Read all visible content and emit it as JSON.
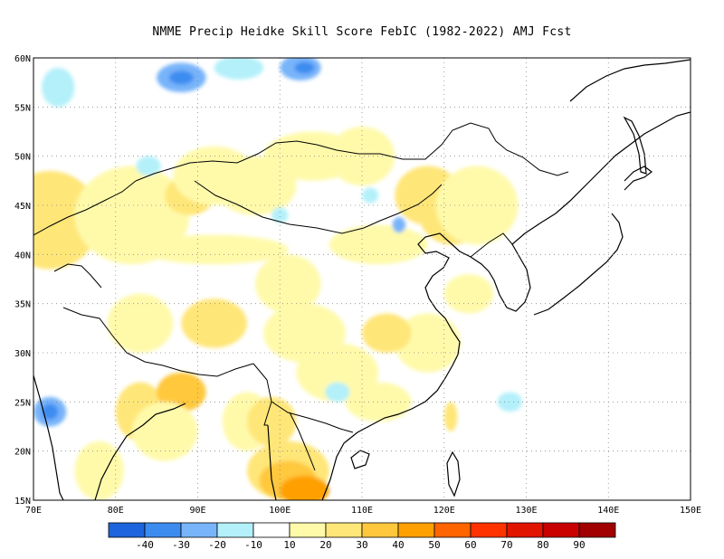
{
  "title": "NMME Precip Heidke Skill Score FebIC (1982-2022) AMJ Fcst",
  "map": {
    "lon_range": [
      70,
      150
    ],
    "lat_range": [
      15,
      60
    ],
    "lon_ticks": [
      "70E",
      "80E",
      "90E",
      "100E",
      "110E",
      "120E",
      "130E",
      "140E",
      "150E"
    ],
    "lat_ticks": [
      "15N",
      "20N",
      "25N",
      "30N",
      "35N",
      "40N",
      "45N",
      "50N",
      "55N",
      "60N"
    ],
    "gridlines": true
  },
  "colorbar": {
    "labels": [
      "-40",
      "-30",
      "-20",
      "-10",
      "10",
      "20",
      "30",
      "40",
      "50",
      "60",
      "70",
      "80",
      "90"
    ],
    "colors": [
      "#1e64dc",
      "#3c8cf0",
      "#78b4fa",
      "#b4f0fa",
      "#ffffff",
      "#fffaaa",
      "#ffe678",
      "#ffc83c",
      "#ffa000",
      "#ff6400",
      "#ff3200",
      "#e11400",
      "#c80000",
      "#a00000"
    ]
  },
  "skill_patches": [
    {
      "lon": 71,
      "lat": 45,
      "rx": 3,
      "ry": 1.8,
      "color": "#ffa000"
    },
    {
      "lon": 73,
      "lat": 42,
      "rx": 3,
      "ry": 2.2,
      "color": "#ffc83c"
    },
    {
      "lon": 72,
      "lat": 43.5,
      "rx": 6,
      "ry": 5,
      "color": "#ffe678"
    },
    {
      "lon": 82,
      "lat": 44,
      "rx": 7,
      "ry": 5,
      "color": "#fffaaa"
    },
    {
      "lon": 89,
      "lat": 46,
      "rx": 3,
      "ry": 2,
      "color": "#ffe678"
    },
    {
      "lon": 92,
      "lat": 48,
      "rx": 5,
      "ry": 3,
      "color": "#fffaaa"
    },
    {
      "lon": 97,
      "lat": 47,
      "rx": 5,
      "ry": 3,
      "color": "#fffaaa"
    },
    {
      "lon": 104,
      "lat": 50,
      "rx": 6,
      "ry": 2.5,
      "color": "#fffaaa"
    },
    {
      "lon": 110,
      "lat": 50,
      "rx": 4,
      "ry": 3,
      "color": "#fffaaa"
    },
    {
      "lon": 118,
      "lat": 46,
      "rx": 4,
      "ry": 3,
      "color": "#ffe678"
    },
    {
      "lon": 121,
      "lat": 44,
      "rx": 4,
      "ry": 3,
      "color": "#ffe678"
    },
    {
      "lon": 124,
      "lat": 45,
      "rx": 5,
      "ry": 4,
      "color": "#fffaaa"
    },
    {
      "lon": 112,
      "lat": 41,
      "rx": 6,
      "ry": 2,
      "color": "#fffaaa"
    },
    {
      "lon": 123,
      "lat": 36,
      "rx": 3,
      "ry": 2,
      "color": "#fffaaa"
    },
    {
      "lon": 92,
      "lat": 40.5,
      "rx": 9,
      "ry": 1.5,
      "color": "#fffaaa"
    },
    {
      "lon": 101,
      "lat": 37,
      "rx": 4,
      "ry": 3,
      "color": "#fffaaa"
    },
    {
      "lon": 92,
      "lat": 33,
      "rx": 4,
      "ry": 2.5,
      "color": "#ffe678"
    },
    {
      "lon": 83,
      "lat": 33,
      "rx": 4,
      "ry": 3,
      "color": "#fffaaa"
    },
    {
      "lon": 103,
      "lat": 32,
      "rx": 5,
      "ry": 3,
      "color": "#fffaaa"
    },
    {
      "lon": 107,
      "lat": 28,
      "rx": 5,
      "ry": 3,
      "color": "#fffaaa"
    },
    {
      "lon": 112,
      "lat": 25,
      "rx": 4,
      "ry": 2,
      "color": "#fffaaa"
    },
    {
      "lon": 118,
      "lat": 31,
      "rx": 4,
      "ry": 3,
      "color": "#fffaaa"
    },
    {
      "lon": 113,
      "lat": 32,
      "rx": 3,
      "ry": 2,
      "color": "#ffe678"
    },
    {
      "lon": 83,
      "lat": 24,
      "rx": 3,
      "ry": 3,
      "color": "#ffe678"
    },
    {
      "lon": 88,
      "lat": 26,
      "rx": 3,
      "ry": 2,
      "color": "#ffc83c"
    },
    {
      "lon": 86,
      "lat": 22,
      "rx": 4,
      "ry": 3,
      "color": "#fffaaa"
    },
    {
      "lon": 78,
      "lat": 18,
      "rx": 3,
      "ry": 3,
      "color": "#fffaaa"
    },
    {
      "lon": 96,
      "lat": 23,
      "rx": 3,
      "ry": 3,
      "color": "#fffaaa"
    },
    {
      "lon": 99,
      "lat": 23,
      "rx": 3,
      "ry": 2.5,
      "color": "#ffe678"
    },
    {
      "lon": 101,
      "lat": 18,
      "rx": 5,
      "ry": 3,
      "color": "#ffe678"
    },
    {
      "lon": 101,
      "lat": 17,
      "rx": 3.5,
      "ry": 2,
      "color": "#ffc83c"
    },
    {
      "lon": 103,
      "lat": 16,
      "rx": 3,
      "ry": 1.5,
      "color": "#ffa000"
    },
    {
      "lon": 120.8,
      "lat": 23.5,
      "rx": 0.8,
      "ry": 1.5,
      "color": "#ffe678"
    },
    {
      "lon": 73,
      "lat": 57,
      "rx": 2,
      "ry": 2,
      "color": "#b4f0fa"
    },
    {
      "lon": 88,
      "lat": 58,
      "rx": 3,
      "ry": 1.5,
      "color": "#78b4fa"
    },
    {
      "lon": 88,
      "lat": 58,
      "rx": 1.5,
      "ry": 0.7,
      "color": "#3c8cf0"
    },
    {
      "lon": 95,
      "lat": 59,
      "rx": 3,
      "ry": 1.2,
      "color": "#b4f0fa"
    },
    {
      "lon": 102.5,
      "lat": 59,
      "rx": 2.5,
      "ry": 1.3,
      "color": "#78b4fa"
    },
    {
      "lon": 103,
      "lat": 59,
      "rx": 1.2,
      "ry": 0.6,
      "color": "#3c8cf0"
    },
    {
      "lon": 84,
      "lat": 49,
      "rx": 1.5,
      "ry": 1,
      "color": "#b4f0fa"
    },
    {
      "lon": 72,
      "lat": 24,
      "rx": 2,
      "ry": 1.5,
      "color": "#78b4fa"
    },
    {
      "lon": 72,
      "lat": 24,
      "rx": 1,
      "ry": 0.8,
      "color": "#3c8cf0"
    },
    {
      "lon": 114.5,
      "lat": 43,
      "rx": 0.8,
      "ry": 0.8,
      "color": "#78b4fa"
    },
    {
      "lon": 128,
      "lat": 25,
      "rx": 1.5,
      "ry": 1,
      "color": "#b4f0fa"
    },
    {
      "lon": 100,
      "lat": 44,
      "rx": 1,
      "ry": 0.8,
      "color": "#b4f0fa"
    },
    {
      "lon": 111,
      "lat": 46,
      "rx": 1,
      "ry": 0.8,
      "color": "#b4f0fa"
    },
    {
      "lon": 107,
      "lat": 26,
      "rx": 1.5,
      "ry": 1,
      "color": "#b4f0fa"
    }
  ]
}
